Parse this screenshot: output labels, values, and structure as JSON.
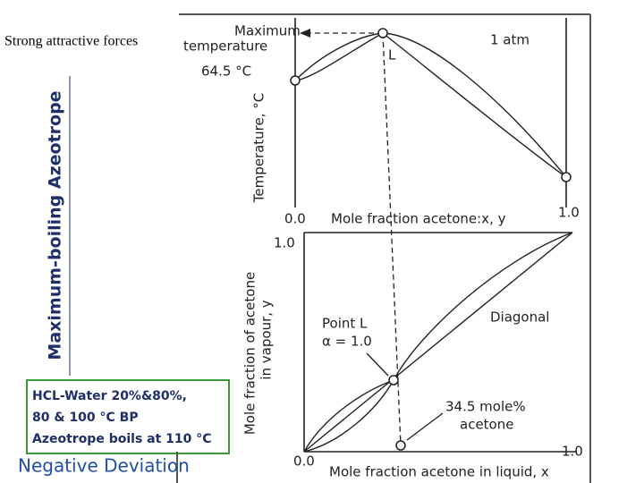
{
  "slide": {
    "side_note": "Strong attractive forces",
    "vertical_title": "Maximum-boiling Azeotrope",
    "example_box": [
      "HCL-Water 20%&80%,",
      "80 & 100 °C BP",
      "Azeotrope boils at 110 °C"
    ],
    "footer_title": "Negative Deviation"
  },
  "figure": {
    "top_plot": {
      "max_label": [
        "Maximum",
        "temperature"
      ],
      "temp_label": "64.5 °C",
      "pressure": "1 atm",
      "point": "L",
      "y_axis": "Temperature, °C",
      "x_start": "0.0",
      "x_axis": "Mole fraction acetone:x, y",
      "x_end": "1.0"
    },
    "bottom_plot": {
      "y_end": "1.0",
      "y_axis": [
        "Mole fraction of acetone",
        "in vapour, y"
      ],
      "point_label": [
        "Point L",
        "α = 1.0"
      ],
      "diagonal": "Diagonal",
      "composition": [
        "34.5 mole%",
        "acetone"
      ],
      "x_start": "0.0",
      "x_end": "1.0",
      "x_axis": "Mole fraction acetone in liquid, x"
    }
  }
}
